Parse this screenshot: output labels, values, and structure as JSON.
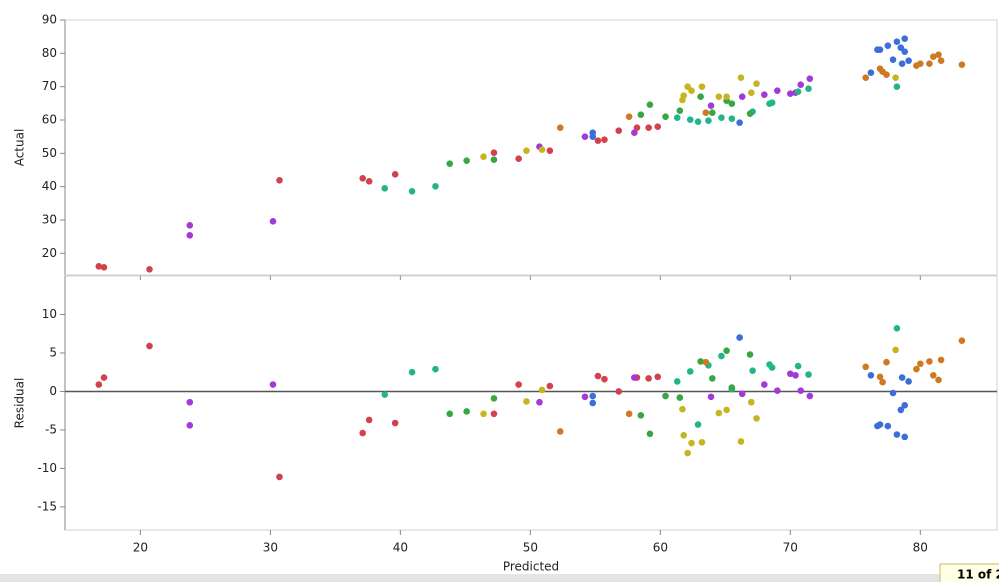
{
  "chart_data": [
    {
      "type": "scatter",
      "ylabel": "Actual",
      "xlim": [
        14.2,
        85.9
      ],
      "xticks": [
        20,
        30,
        40,
        50,
        60,
        70,
        80
      ],
      "ylim": [
        13.5,
        90
      ],
      "yticks": [
        20,
        30,
        40,
        50,
        60,
        70,
        80,
        90
      ],
      "series": [
        {
          "color": "#d3414f",
          "x": [
            16.8,
            17.2,
            20.7,
            30.7,
            37.1,
            37.6,
            39.6,
            47.2,
            49.1,
            51.5,
            55.2,
            55.7,
            56.8,
            58.2,
            59.1,
            59.8
          ],
          "values": [
            16.1,
            15.8,
            15.2,
            41.9,
            42.5,
            41.6,
            43.7,
            50.2,
            48.4,
            50.8,
            53.8,
            54.1,
            56.8,
            57.7,
            57.7,
            58.0
          ]
        },
        {
          "color": "#a13ad6",
          "x": [
            23.8,
            23.8,
            30.2,
            50.7,
            54.2,
            58.0,
            63.9,
            66.3,
            68.0,
            69.0,
            70.0,
            70.4,
            70.8,
            71.5
          ],
          "values": [
            28.4,
            25.4,
            29.6,
            52.0,
            55.0,
            56.2,
            64.3,
            67.0,
            67.6,
            68.8,
            67.9,
            68.2,
            70.6,
            72.4
          ]
        },
        {
          "color": "#22b58a",
          "x": [
            38.8,
            40.9,
            42.7,
            61.3,
            62.3,
            62.9,
            63.7,
            64.7,
            65.5,
            67.1,
            68.4,
            68.6,
            70.6,
            71.4,
            78.2
          ],
          "values": [
            39.5,
            38.6,
            40.1,
            60.7,
            60.1,
            59.5,
            59.8,
            60.7,
            60.4,
            62.5,
            64.9,
            65.2,
            68.5,
            69.4,
            70.0
          ]
        },
        {
          "color": "#3aa543",
          "x": [
            43.8,
            45.1,
            47.2,
            58.5,
            59.2,
            60.4,
            61.5,
            63.1,
            64.0,
            65.1,
            65.5,
            66.9
          ],
          "values": [
            46.9,
            47.8,
            48.1,
            61.6,
            64.6,
            61.0,
            62.8,
            67.0,
            62.2,
            65.8,
            64.9,
            61.9
          ]
        },
        {
          "color": "#c4b521",
          "x": [
            46.4,
            49.7,
            50.9,
            61.7,
            61.8,
            62.1,
            62.4,
            63.2,
            64.5,
            65.1,
            66.2,
            67.0,
            67.4,
            78.1
          ],
          "values": [
            49.0,
            50.8,
            51.1,
            66.0,
            67.3,
            70.0,
            68.8,
            70.0,
            67.0,
            67.0,
            72.7,
            68.2,
            70.9,
            72.7
          ]
        },
        {
          "color": "#cf7a23",
          "x": [
            52.3,
            57.6,
            63.5,
            75.8,
            76.9,
            77.1,
            77.4,
            79.7,
            80.0,
            80.7,
            81.0,
            81.4,
            81.6,
            83.2
          ],
          "values": [
            57.7,
            61.0,
            62.2,
            72.7,
            75.4,
            74.5,
            73.6,
            76.3,
            76.9,
            76.9,
            79.0,
            79.6,
            77.8,
            76.6
          ]
        },
        {
          "color": "#3b6ed8",
          "x": [
            54.8,
            54.8,
            66.1,
            76.2,
            76.7,
            76.9,
            77.5,
            77.9,
            78.2,
            78.5,
            78.8,
            78.8,
            78.6,
            79.1
          ],
          "values": [
            56.2,
            55.0,
            59.2,
            74.2,
            81.1,
            81.1,
            82.3,
            78.1,
            83.5,
            81.7,
            80.5,
            84.4,
            76.9,
            77.8
          ]
        }
      ]
    },
    {
      "type": "scatter",
      "ylabel": "Residual",
      "xlabel": "Predicted",
      "xlim": [
        14.2,
        85.9
      ],
      "xticks": [
        20,
        30,
        40,
        50,
        60,
        70,
        80
      ],
      "ylim": [
        -18,
        15
      ],
      "yticks": [
        -15,
        -10,
        -5,
        0,
        5,
        10
      ],
      "reference_line": 0,
      "series": [
        {
          "color": "#d3414f",
          "x": [
            16.8,
            17.2,
            20.7,
            30.7,
            37.1,
            37.6,
            39.6,
            47.2,
            49.1,
            51.5,
            55.2,
            55.7,
            56.8,
            58.2,
            59.1,
            59.8
          ],
          "values": [
            0.9,
            1.8,
            5.9,
            -11.1,
            -5.4,
            -3.7,
            -4.1,
            -2.9,
            0.9,
            0.7,
            2.0,
            1.6,
            0.0,
            1.8,
            1.7,
            1.9
          ]
        },
        {
          "color": "#a13ad6",
          "x": [
            23.8,
            23.8,
            30.2,
            50.7,
            54.2,
            58.0,
            63.9,
            66.3,
            68.0,
            69.0,
            70.0,
            70.4,
            70.8,
            71.5
          ],
          "values": [
            -1.4,
            -4.4,
            0.9,
            -1.4,
            -0.7,
            1.8,
            -0.7,
            -0.3,
            0.9,
            0.1,
            2.3,
            2.1,
            0.1,
            -0.6
          ]
        },
        {
          "color": "#22b58a",
          "x": [
            38.8,
            40.9,
            42.7,
            61.3,
            62.3,
            62.9,
            63.7,
            64.7,
            65.5,
            67.1,
            68.4,
            68.6,
            70.6,
            71.4,
            78.2
          ],
          "values": [
            -0.4,
            2.5,
            2.9,
            1.3,
            2.6,
            -4.3,
            3.4,
            4.6,
            0.3,
            2.7,
            3.5,
            3.1,
            3.3,
            2.2,
            8.2
          ]
        },
        {
          "color": "#3aa543",
          "x": [
            43.8,
            45.1,
            47.2,
            58.5,
            59.2,
            60.4,
            61.5,
            63.1,
            64.0,
            65.1,
            65.5,
            66.9
          ],
          "values": [
            -2.9,
            -2.6,
            -0.9,
            -3.1,
            -5.5,
            -0.6,
            -0.8,
            3.9,
            1.7,
            5.3,
            0.5,
            4.8
          ]
        },
        {
          "color": "#c4b521",
          "x": [
            46.4,
            49.7,
            50.9,
            61.7,
            61.8,
            62.1,
            62.4,
            63.2,
            64.5,
            65.1,
            66.2,
            67.0,
            67.4,
            78.1
          ],
          "values": [
            -2.9,
            -1.3,
            0.2,
            -2.3,
            -5.7,
            -8.0,
            -6.7,
            -6.6,
            -2.8,
            -2.4,
            -6.5,
            -1.4,
            -3.5,
            5.4
          ]
        },
        {
          "color": "#cf7a23",
          "x": [
            52.3,
            57.6,
            63.5,
            75.8,
            76.9,
            77.1,
            77.4,
            79.7,
            80.0,
            80.7,
            81.0,
            81.4,
            81.6,
            83.2
          ],
          "values": [
            -5.2,
            -2.9,
            3.8,
            3.2,
            1.9,
            1.2,
            3.8,
            2.9,
            3.6,
            3.9,
            2.1,
            1.5,
            4.1,
            6.6
          ]
        },
        {
          "color": "#3b6ed8",
          "x": [
            54.8,
            54.8,
            66.1,
            76.2,
            76.7,
            76.9,
            77.5,
            77.9,
            78.2,
            78.5,
            78.8,
            78.8,
            78.6,
            79.1
          ],
          "values": [
            -1.5,
            -0.6,
            7.0,
            2.1,
            -4.5,
            -4.3,
            -4.5,
            -0.2,
            -5.6,
            -2.4,
            -1.8,
            -5.9,
            1.8,
            1.3
          ]
        }
      ]
    }
  ],
  "status": "11 of 2"
}
